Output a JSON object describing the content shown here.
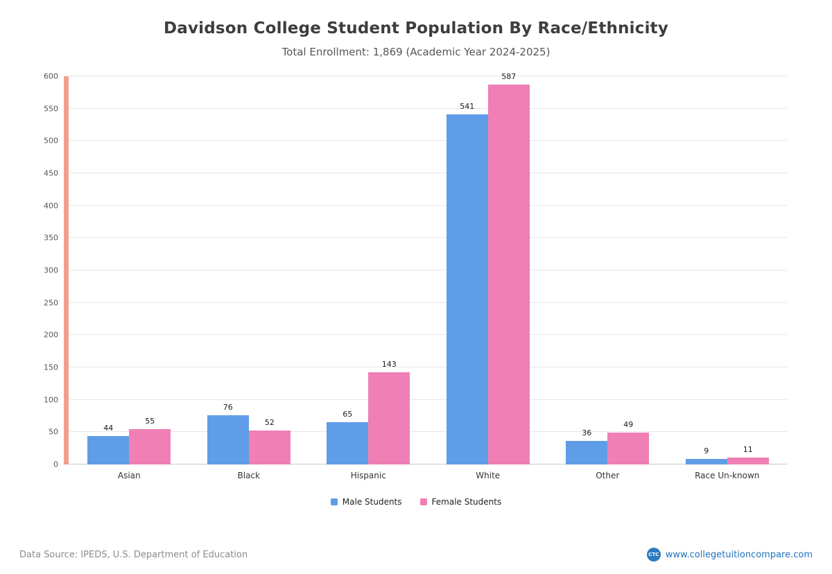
{
  "header": {
    "title": "Davidson College Student Population By Race/Ethnicity",
    "subtitle": "Total Enrollment: 1,869 (Academic Year 2024-2025)"
  },
  "chart_data": {
    "type": "bar",
    "title": "Davidson College Student Population By Race/Ethnicity",
    "subtitle": "Total Enrollment: 1,869 (Academic Year 2024-2025)",
    "categories": [
      "Asian",
      "Black",
      "Hispanic",
      "White",
      "Other",
      "Race Un-known"
    ],
    "series": [
      {
        "name": "Male Students",
        "color": "#5f9de8",
        "values": [
          44,
          76,
          65,
          541,
          36,
          9
        ]
      },
      {
        "name": "Female Students",
        "color": "#f07fb5",
        "values": [
          55,
          52,
          143,
          587,
          49,
          11
        ]
      }
    ],
    "ylim": [
      0,
      600
    ],
    "ytick_step": 50,
    "grid": true,
    "gridline_color": "#e6e6e6",
    "baseline_color": "#c9c9c9",
    "axis_strip_color": "#ef8e7d",
    "legend_position": "bottom",
    "value_labels": true,
    "xlabel": "",
    "ylabel": ""
  },
  "footer": {
    "source": "Data Source: IPEDS, U.S. Department of Education",
    "logo_text": "CTC",
    "website": "www.collegetuitioncompare.com"
  }
}
